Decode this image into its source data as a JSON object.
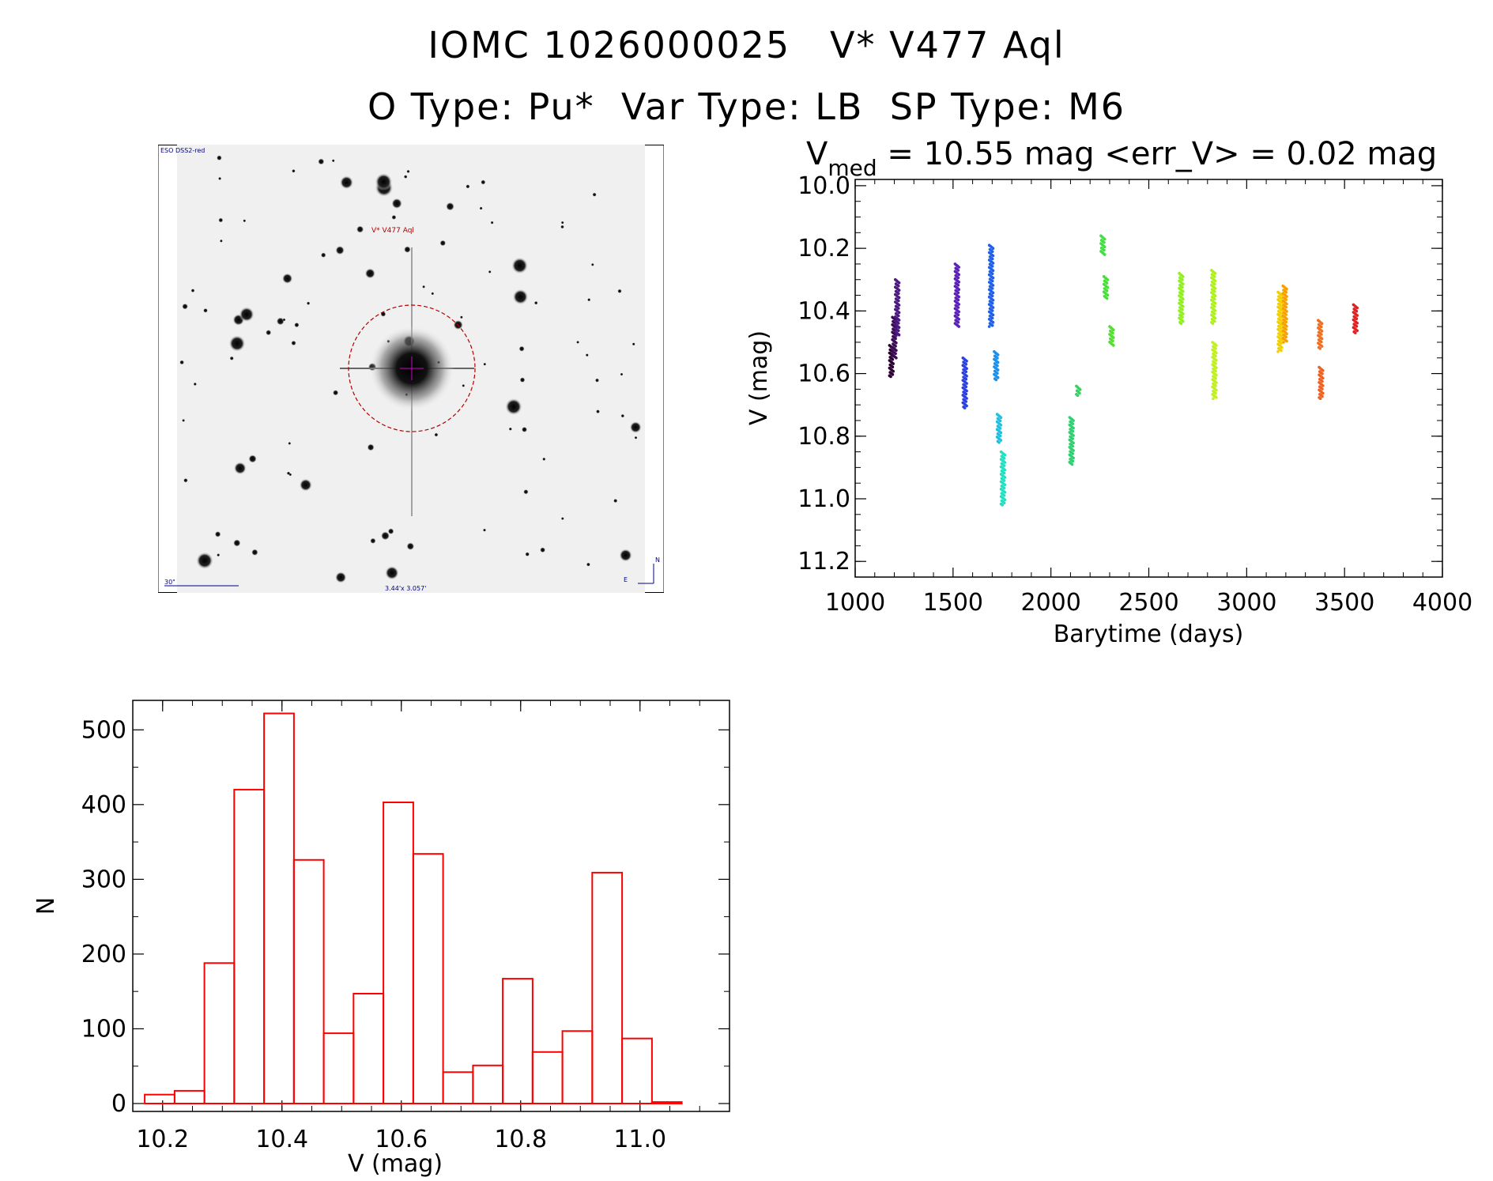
{
  "header": {
    "line1": "IOMC 1026000025   V* V477 Aql",
    "line2": "O Type: Pu*  Var Type: LB  SP Type: M6"
  },
  "image_panel": {
    "survey_label": "ESO DSS2-red",
    "target_label": "V* V477 Aql",
    "scale_label": "30\"",
    "fov_label": "3.44'x 3.057'",
    "compass_n": "N",
    "compass_e": "E"
  },
  "colors": {
    "hist": "#ff0000",
    "target_circle": "#b00000"
  },
  "chart_data": [
    {
      "type": "scatter",
      "title_prefix": "V",
      "title_sub": "med",
      "title_rest": " = 10.55 mag <err_V> = 0.02 mag",
      "xlabel": "Barytime (days)",
      "ylabel": "V (mag)",
      "xlim": [
        1000,
        4000
      ],
      "ylim": [
        11.25,
        9.98
      ],
      "xticks": [
        1000,
        1500,
        2000,
        2500,
        3000,
        3500,
        4000
      ],
      "yticks": [
        10.0,
        10.2,
        10.4,
        10.6,
        10.8,
        11.0,
        11.2
      ],
      "xtick_labels": [
        "1000",
        "1500",
        "2000",
        "2500",
        "3000",
        "3500",
        "4000"
      ],
      "ytick_labels": [
        "10.0",
        "10.2",
        "10.4",
        "10.6",
        "10.8",
        "11.0",
        "11.2"
      ],
      "clusters": [
        {
          "x": 1185,
          "ymin": 10.51,
          "ymax": 10.61,
          "color": "#2a0033"
        },
        {
          "x": 1200,
          "ymin": 10.42,
          "ymax": 10.55,
          "color": "#3a0a55"
        },
        {
          "x": 1215,
          "ymin": 10.3,
          "ymax": 10.48,
          "color": "#4a1a80"
        },
        {
          "x": 1520,
          "ymin": 10.25,
          "ymax": 10.45,
          "color": "#5a20b8"
        },
        {
          "x": 1560,
          "ymin": 10.55,
          "ymax": 10.71,
          "color": "#2a40e0"
        },
        {
          "x": 1695,
          "ymin": 10.19,
          "ymax": 10.45,
          "color": "#2060e8"
        },
        {
          "x": 1720,
          "ymin": 10.53,
          "ymax": 10.62,
          "color": "#1890f0"
        },
        {
          "x": 1735,
          "ymin": 10.73,
          "ymax": 10.82,
          "color": "#20c0e0"
        },
        {
          "x": 1755,
          "ymin": 10.85,
          "ymax": 11.02,
          "color": "#20e0c0"
        },
        {
          "x": 2105,
          "ymin": 10.74,
          "ymax": 10.89,
          "color": "#30d070"
        },
        {
          "x": 2140,
          "ymin": 10.64,
          "ymax": 10.67,
          "color": "#38d060"
        },
        {
          "x": 2265,
          "ymin": 10.16,
          "ymax": 10.22,
          "color": "#40e040"
        },
        {
          "x": 2280,
          "ymin": 10.29,
          "ymax": 10.36,
          "color": "#48e038"
        },
        {
          "x": 2310,
          "ymin": 10.45,
          "ymax": 10.51,
          "color": "#50e030"
        },
        {
          "x": 2665,
          "ymin": 10.28,
          "ymax": 10.44,
          "color": "#90f020"
        },
        {
          "x": 2830,
          "ymin": 10.27,
          "ymax": 10.44,
          "color": "#b0f020"
        },
        {
          "x": 2835,
          "ymin": 10.5,
          "ymax": 10.68,
          "color": "#c0f020"
        },
        {
          "x": 3170,
          "ymin": 10.34,
          "ymax": 10.53,
          "color": "#f0d000"
        },
        {
          "x": 3195,
          "ymin": 10.32,
          "ymax": 10.5,
          "color": "#f8a000"
        },
        {
          "x": 3375,
          "ymin": 10.43,
          "ymax": 10.52,
          "color": "#f07020"
        },
        {
          "x": 3380,
          "ymin": 10.58,
          "ymax": 10.68,
          "color": "#f06020"
        },
        {
          "x": 3555,
          "ymin": 10.38,
          "ymax": 10.47,
          "color": "#e02020"
        }
      ]
    },
    {
      "type": "bar",
      "style": "histogram",
      "xlabel": "V (mag)",
      "ylabel": "N",
      "xlim": [
        10.15,
        11.15
      ],
      "ylim": [
        0,
        550
      ],
      "xticks": [
        10.2,
        10.4,
        10.6,
        10.8,
        11.0
      ],
      "xtick_labels": [
        "10.2",
        "10.4",
        "10.6",
        "10.8",
        "11.0"
      ],
      "yticks": [
        0,
        100,
        200,
        300,
        400,
        500
      ],
      "ytick_labels": [
        "0",
        "100",
        "200",
        "300",
        "400",
        "500"
      ],
      "bin_width": 0.05,
      "bin_lefts": [
        10.17,
        10.22,
        10.27,
        10.32,
        10.37,
        10.42,
        10.47,
        10.52,
        10.57,
        10.62,
        10.67,
        10.72,
        10.77,
        10.82,
        10.87,
        10.92,
        10.97,
        11.02
      ],
      "values": [
        12,
        17,
        188,
        420,
        522,
        326,
        94,
        147,
        403,
        334,
        42,
        51,
        167,
        69,
        97,
        309,
        87,
        2
      ]
    }
  ]
}
